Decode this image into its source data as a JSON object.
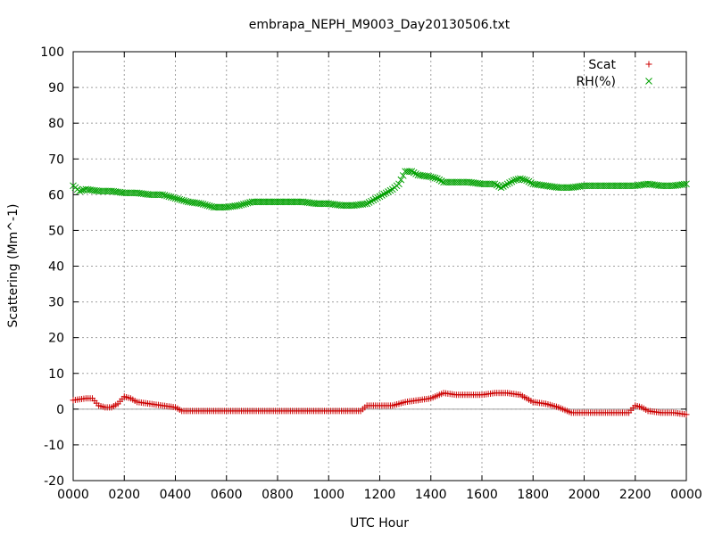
{
  "chart_data": {
    "type": "scatter",
    "title": "embrapa_NEPH_M9003_Day20130506.txt",
    "xlabel": "UTC Hour",
    "ylabel": "Scattering (Mm^-1)",
    "xlim": [
      0,
      24
    ],
    "ylim": [
      -20,
      100
    ],
    "y_ticks": [
      -20,
      -10,
      0,
      10,
      20,
      30,
      40,
      50,
      60,
      70,
      80,
      90,
      100
    ],
    "x_ticks": [
      {
        "value": 0,
        "label": "0000"
      },
      {
        "value": 2,
        "label": "0200"
      },
      {
        "value": 4,
        "label": "0400"
      },
      {
        "value": 6,
        "label": "0600"
      },
      {
        "value": 8,
        "label": "0800"
      },
      {
        "value": 10,
        "label": "1000"
      },
      {
        "value": 12,
        "label": "1200"
      },
      {
        "value": 14,
        "label": "1400"
      },
      {
        "value": 16,
        "label": "1600"
      },
      {
        "value": 18,
        "label": "1800"
      },
      {
        "value": 20,
        "label": "2000"
      },
      {
        "value": 22,
        "label": "2200"
      },
      {
        "value": 24,
        "label": "0000"
      }
    ],
    "grid": true,
    "legend_position": "top-right",
    "zero_line": true,
    "series": [
      {
        "name": "Scat",
        "marker": "plus",
        "color": "#cc0000",
        "x": [
          0.0,
          0.5,
          0.75,
          1.0,
          1.25,
          1.5,
          1.75,
          2.0,
          2.25,
          2.5,
          3.0,
          3.5,
          4.0,
          4.25,
          4.5,
          5.0,
          5.5,
          6.0,
          7.0,
          8.0,
          9.0,
          10.0,
          10.5,
          11.0,
          11.25,
          11.5,
          12.0,
          12.5,
          13.0,
          13.5,
          14.0,
          14.5,
          15.0,
          15.5,
          16.0,
          16.5,
          17.0,
          17.5,
          18.0,
          18.5,
          19.0,
          19.5,
          20.0,
          21.0,
          21.75,
          22.0,
          22.25,
          22.5,
          23.0,
          23.5,
          24.0
        ],
        "y": [
          2.5,
          3.0,
          3.0,
          1.0,
          0.5,
          0.5,
          1.5,
          3.5,
          3.0,
          2.0,
          1.5,
          1.0,
          0.5,
          -0.5,
          -0.5,
          -0.5,
          -0.5,
          -0.5,
          -0.5,
          -0.5,
          -0.5,
          -0.5,
          -0.5,
          -0.5,
          -0.5,
          1.0,
          1.0,
          1.0,
          2.0,
          2.5,
          3.0,
          4.5,
          4.0,
          4.0,
          4.0,
          4.5,
          4.5,
          4.0,
          2.0,
          1.5,
          0.5,
          -1.0,
          -1.0,
          -1.0,
          -1.0,
          1.0,
          0.5,
          -0.5,
          -1.0,
          -1.0,
          -1.5
        ]
      },
      {
        "name": "RH(%)",
        "marker": "cross",
        "color": "#00a000",
        "x": [
          0.0,
          0.25,
          0.5,
          1.0,
          1.5,
          2.0,
          2.5,
          3.0,
          3.5,
          4.0,
          4.5,
          5.0,
          5.5,
          6.0,
          6.5,
          7.0,
          7.5,
          8.0,
          8.5,
          9.0,
          9.5,
          10.0,
          10.5,
          11.0,
          11.5,
          12.0,
          12.5,
          12.75,
          13.0,
          13.25,
          13.5,
          14.0,
          14.25,
          14.5,
          15.0,
          15.5,
          16.0,
          16.5,
          16.75,
          17.0,
          17.25,
          17.5,
          17.75,
          18.0,
          18.5,
          19.0,
          19.5,
          20.0,
          20.5,
          21.0,
          21.5,
          22.0,
          22.5,
          23.0,
          23.5,
          24.0
        ],
        "y": [
          62.5,
          61.0,
          61.5,
          61.0,
          61.0,
          60.5,
          60.5,
          60.0,
          60.0,
          59.0,
          58.0,
          57.5,
          56.5,
          56.5,
          57.0,
          58.0,
          58.0,
          58.0,
          58.0,
          58.0,
          57.5,
          57.5,
          57.0,
          57.0,
          57.5,
          59.5,
          61.5,
          63.0,
          66.5,
          66.5,
          65.5,
          65.0,
          64.5,
          63.5,
          63.5,
          63.5,
          63.0,
          63.0,
          62.0,
          63.0,
          64.0,
          64.5,
          64.0,
          63.0,
          62.5,
          62.0,
          62.0,
          62.5,
          62.5,
          62.5,
          62.5,
          62.5,
          63.0,
          62.5,
          62.5,
          63.0
        ]
      }
    ]
  }
}
